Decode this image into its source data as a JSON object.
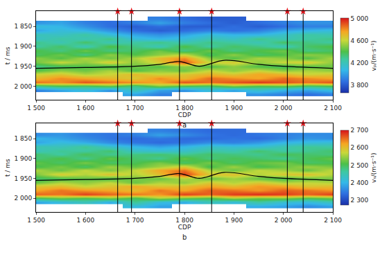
{
  "chart_data": [
    {
      "type": "heatmap",
      "panel_label": "a",
      "xlabel": "CDP",
      "ylabel": "t / ms",
      "xlim": [
        1500,
        2100
      ],
      "ylim": [
        2035,
        1812
      ],
      "xticks": [
        {
          "value": 1500,
          "label": "1 500"
        },
        {
          "value": 1600,
          "label": "1 600"
        },
        {
          "value": 1700,
          "label": "1 700"
        },
        {
          "value": 1800,
          "label": "1 800"
        },
        {
          "value": 1900,
          "label": "1 900"
        },
        {
          "value": 2000,
          "label": "2 000"
        },
        {
          "value": 2100,
          "label": "2 100"
        }
      ],
      "yticks": [
        {
          "value": 1850,
          "label": "1 850"
        },
        {
          "value": 1900,
          "label": "1 900"
        },
        {
          "value": 1950,
          "label": "1 950"
        },
        {
          "value": 2000,
          "label": "2 000"
        }
      ],
      "colorbar": {
        "title": "vₚ/(m·s⁻¹)",
        "range": [
          3650,
          5000
        ],
        "ticks": [
          {
            "value": 3800,
            "label": "3 800"
          },
          {
            "value": 4200,
            "label": "4 200"
          },
          {
            "value": 4600,
            "label": "4 600"
          },
          {
            "value": 5000,
            "label": "5 000"
          }
        ]
      },
      "x": [
        1500,
        1550,
        1600,
        1650,
        1700,
        1750,
        1800,
        1850,
        1900,
        1950,
        2000,
        2050,
        2100
      ],
      "y": [
        1830,
        1840,
        1850,
        1860,
        1870,
        1880,
        1890,
        1900,
        1910,
        1920,
        1930,
        1940,
        1950,
        1960,
        1970,
        1980,
        1990,
        2000,
        2010,
        2020
      ],
      "z": [
        [
          null,
          null,
          null,
          null,
          null,
          3900,
          3850,
          3800,
          3800,
          null,
          null,
          null,
          null
        ],
        [
          3950,
          4000,
          3900,
          3850,
          3900,
          4000,
          3900,
          3850,
          3800,
          3850,
          3900,
          3950,
          3950
        ],
        [
          4100,
          4050,
          3950,
          3850,
          3800,
          3850,
          3800,
          3800,
          3850,
          3800,
          3850,
          3900,
          3900
        ],
        [
          4000,
          4100,
          4050,
          3950,
          3850,
          3800,
          3850,
          3900,
          3850,
          3900,
          4000,
          4050,
          4100
        ],
        [
          4200,
          4150,
          4250,
          4100,
          4000,
          3950,
          4000,
          4100,
          4050,
          4050,
          4150,
          4250,
          4200
        ],
        [
          4150,
          4250,
          4200,
          4300,
          4100,
          4050,
          4100,
          4200,
          4150,
          4300,
          4200,
          4250,
          4300
        ],
        [
          4300,
          4200,
          4350,
          4200,
          4250,
          4300,
          4200,
          4300,
          4250,
          4200,
          4350,
          4300,
          4250
        ],
        [
          4250,
          4350,
          4200,
          4400,
          4300,
          4200,
          4400,
          4250,
          4350,
          4300,
          4200,
          4350,
          4400
        ],
        [
          4400,
          4300,
          4450,
          4300,
          4350,
          4450,
          4300,
          4450,
          4300,
          4400,
          4450,
          4300,
          4350
        ],
        [
          4350,
          4450,
          4300,
          4500,
          4400,
          4500,
          4600,
          4350,
          4500,
          4350,
          4400,
          4500,
          4450
        ],
        [
          4500,
          4400,
          4550,
          4450,
          4550,
          4700,
          4800,
          4500,
          4400,
          4550,
          4500,
          4400,
          4550
        ],
        [
          4450,
          4600,
          4500,
          4650,
          4500,
          4650,
          4900,
          4600,
          4650,
          4500,
          4600,
          4650,
          4500
        ],
        [
          4300,
          4350,
          4400,
          4350,
          4450,
          4400,
          4500,
          4400,
          4500,
          4400,
          4350,
          4400,
          4450
        ],
        [
          4400,
          4500,
          4450,
          4550,
          4400,
          4500,
          4450,
          4600,
          4500,
          4600,
          4500,
          4550,
          4500
        ],
        [
          4600,
          4650,
          4550,
          4600,
          4700,
          4600,
          4650,
          4700,
          4650,
          4750,
          4700,
          4600,
          4650
        ],
        [
          4700,
          4800,
          4750,
          4700,
          4650,
          4800,
          4700,
          4850,
          4800,
          4750,
          4850,
          4800,
          4750
        ],
        [
          4850,
          4800,
          4900,
          4850,
          4800,
          4750,
          4900,
          4850,
          4900,
          4950,
          4900,
          4850,
          4900
        ],
        [
          4300,
          4400,
          4350,
          4450,
          4300,
          4500,
          4400,
          4350,
          4500,
          4400,
          4450,
          4350,
          4400
        ],
        [
          3900,
          4000,
          4100,
          3950,
          4200,
          4000,
          3950,
          4100,
          4000,
          4150,
          4050,
          4000,
          4100
        ],
        [
          null,
          null,
          null,
          null,
          4000,
          3900,
          null,
          null,
          null,
          3950,
          3900,
          3850,
          3900
        ]
      ],
      "wells": [
        1665,
        1693,
        1790,
        1855,
        2008,
        2040
      ],
      "horizon": {
        "x": [
          1500,
          1600,
          1700,
          1750,
          1790,
          1830,
          1880,
          1950,
          2000,
          2100
        ],
        "y": [
          1955,
          1953,
          1950,
          1945,
          1938,
          1950,
          1935,
          1945,
          1950,
          1955
        ]
      }
    },
    {
      "type": "heatmap",
      "panel_label": "b",
      "xlabel": "CDP",
      "ylabel": "t / ms",
      "xlim": [
        1500,
        2100
      ],
      "ylim": [
        2035,
        1812
      ],
      "xticks": [
        {
          "value": 1500,
          "label": "1 500"
        },
        {
          "value": 1600,
          "label": "1 600"
        },
        {
          "value": 1700,
          "label": "1 700"
        },
        {
          "value": 1800,
          "label": "1 800"
        },
        {
          "value": 1900,
          "label": "1 900"
        },
        {
          "value": 2000,
          "label": "2 000"
        },
        {
          "value": 2100,
          "label": "2 100"
        }
      ],
      "yticks": [
        {
          "value": 1850,
          "label": "1 850"
        },
        {
          "value": 1900,
          "label": "1 900"
        },
        {
          "value": 1950,
          "label": "1 950"
        },
        {
          "value": 2000,
          "label": "2 000"
        }
      ],
      "colorbar": {
        "title": "vₛ/(m·s⁻¹)",
        "range": [
          2270,
          2700
        ],
        "ticks": [
          {
            "value": 2300,
            "label": "2 300"
          },
          {
            "value": 2400,
            "label": "2 400"
          },
          {
            "value": 2500,
            "label": "2 500"
          },
          {
            "value": 2600,
            "label": "2 600"
          },
          {
            "value": 2700,
            "label": "2 700"
          }
        ]
      },
      "x": [
        1500,
        1550,
        1600,
        1650,
        1700,
        1750,
        1800,
        1850,
        1900,
        1950,
        2000,
        2050,
        2100
      ],
      "y": [
        1830,
        1840,
        1850,
        1860,
        1870,
        1880,
        1890,
        1900,
        1910,
        1920,
        1930,
        1940,
        1950,
        1960,
        1970,
        1980,
        1990,
        2000,
        2010,
        2020
      ],
      "z": [
        [
          null,
          null,
          null,
          null,
          null,
          2350,
          2340,
          2330,
          2330,
          null,
          null,
          null,
          null
        ],
        [
          2360,
          2370,
          2350,
          2340,
          2350,
          2380,
          2360,
          2340,
          2330,
          2340,
          2350,
          2360,
          2360
        ],
        [
          2400,
          2380,
          2360,
          2340,
          2330,
          2340,
          2330,
          2330,
          2340,
          2330,
          2350,
          2370,
          2360
        ],
        [
          2380,
          2410,
          2390,
          2360,
          2340,
          2330,
          2340,
          2360,
          2350,
          2370,
          2400,
          2410,
          2420
        ],
        [
          2450,
          2440,
          2470,
          2430,
          2400,
          2380,
          2400,
          2430,
          2420,
          2420,
          2450,
          2470,
          2460
        ],
        [
          2440,
          2470,
          2460,
          2490,
          2430,
          2420,
          2430,
          2460,
          2450,
          2490,
          2460,
          2470,
          2490
        ],
        [
          2490,
          2460,
          2500,
          2470,
          2480,
          2490,
          2470,
          2490,
          2480,
          2470,
          2500,
          2490,
          2480
        ],
        [
          2480,
          2510,
          2470,
          2520,
          2490,
          2470,
          2520,
          2480,
          2500,
          2490,
          2470,
          2500,
          2520
        ],
        [
          2520,
          2490,
          2530,
          2490,
          2500,
          2530,
          2490,
          2530,
          2490,
          2520,
          2530,
          2490,
          2500
        ],
        [
          2500,
          2530,
          2490,
          2550,
          2520,
          2550,
          2590,
          2500,
          2550,
          2500,
          2520,
          2550,
          2530
        ],
        [
          2560,
          2520,
          2570,
          2530,
          2570,
          2620,
          2650,
          2560,
          2520,
          2570,
          2550,
          2520,
          2570
        ],
        [
          2530,
          2590,
          2560,
          2600,
          2560,
          2600,
          2680,
          2590,
          2600,
          2560,
          2590,
          2600,
          2560
        ],
        [
          2490,
          2500,
          2520,
          2500,
          2530,
          2520,
          2560,
          2520,
          2550,
          2520,
          2500,
          2520,
          2530
        ],
        [
          2520,
          2560,
          2540,
          2570,
          2520,
          2560,
          2540,
          2590,
          2560,
          2590,
          2560,
          2570,
          2560
        ],
        [
          2590,
          2600,
          2570,
          2590,
          2620,
          2590,
          2600,
          2620,
          2600,
          2630,
          2620,
          2590,
          2600
        ],
        [
          2620,
          2650,
          2630,
          2620,
          2600,
          2650,
          2620,
          2660,
          2650,
          2630,
          2660,
          2650,
          2630
        ],
        [
          2660,
          2650,
          2680,
          2660,
          2650,
          2630,
          2680,
          2660,
          2680,
          2690,
          2680,
          2660,
          2680
        ],
        [
          2500,
          2530,
          2510,
          2540,
          2500,
          2560,
          2530,
          2510,
          2560,
          2530,
          2540,
          2510,
          2530
        ],
        [
          2380,
          2410,
          2440,
          2390,
          2470,
          2410,
          2390,
          2440,
          2410,
          2460,
          2420,
          2410,
          2440
        ],
        [
          null,
          null,
          null,
          null,
          2410,
          2380,
          null,
          null,
          null,
          2390,
          2380,
          2360,
          2380
        ]
      ],
      "wells": [
        1665,
        1693,
        1790,
        1855,
        2008,
        2040
      ],
      "horizon": {
        "x": [
          1500,
          1600,
          1700,
          1750,
          1790,
          1830,
          1880,
          1950,
          2000,
          2100
        ],
        "y": [
          1955,
          1953,
          1950,
          1945,
          1938,
          1950,
          1935,
          1945,
          1950,
          1955
        ]
      }
    }
  ]
}
